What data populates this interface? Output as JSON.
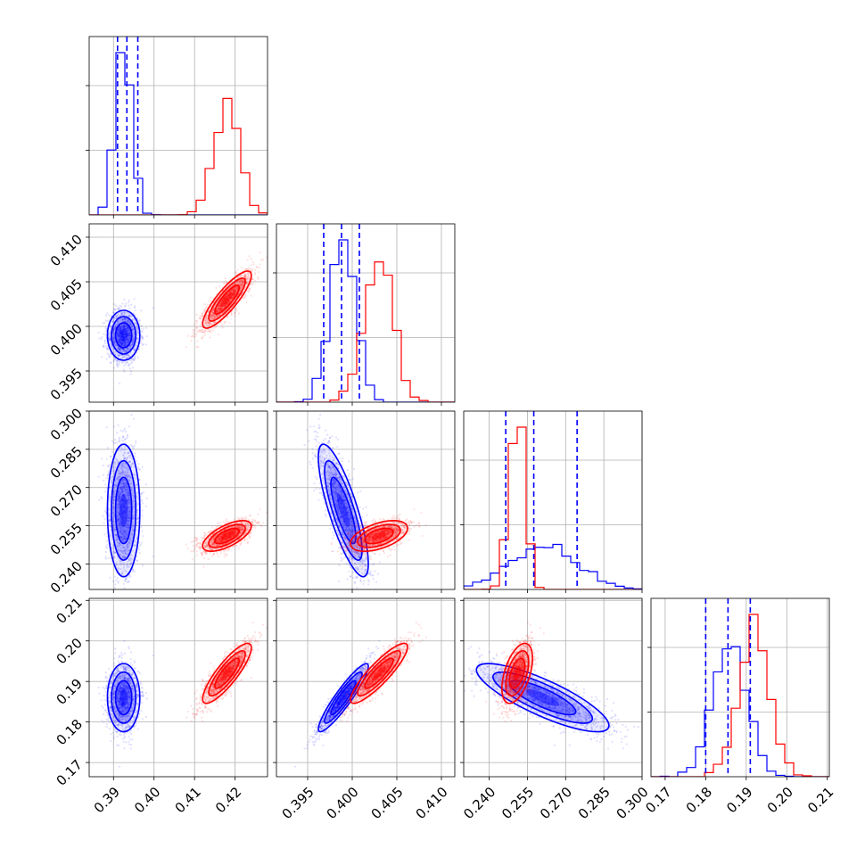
{
  "chart_data": {
    "type": "corner",
    "title": "",
    "parameters": [
      {
        "label": "",
        "range": [
          0.384,
          0.428
        ],
        "ticks": [
          "0.39",
          "0.40",
          "0.41",
          "0.42"
        ]
      },
      {
        "label": "",
        "range": [
          0.3915,
          0.4115
        ],
        "ticks": [
          "0.395",
          "0.400",
          "0.405",
          "0.410"
        ]
      },
      {
        "label": "",
        "range": [
          0.23,
          0.3
        ],
        "ticks": [
          "0.240",
          "0.255",
          "0.270",
          "0.285",
          "0.300"
        ]
      },
      {
        "label": "",
        "range": [
          0.1665,
          0.2105
        ],
        "ticks": [
          "0.17",
          "0.18",
          "0.19",
          "0.20",
          "0.21"
        ]
      }
    ],
    "series": [
      {
        "name": "",
        "color": "#0000ff",
        "mean": [
          0.3925,
          0.399,
          0.261,
          0.186
        ],
        "sigma": [
          0.002,
          0.0014,
          0.013,
          0.0042
        ],
        "corr": [
          [
            1,
            0,
            0,
            0
          ],
          [
            0,
            1,
            -0.8,
            0.92
          ],
          [
            0,
            -0.8,
            1,
            -0.82
          ],
          [
            0,
            0.92,
            -0.82,
            1
          ]
        ],
        "quantiles": [
          [
            0.391,
            0.3933,
            0.396
          ],
          [
            0.3968,
            0.3988,
            0.4008
          ],
          [
            0.2465,
            0.2575,
            0.2745
          ],
          [
            0.18,
            0.1855,
            0.191
          ]
        ]
      },
      {
        "name": "",
        "color": "#ff0000",
        "mean": [
          0.418,
          0.403,
          0.251,
          0.192
        ],
        "sigma": [
          0.003,
          0.0016,
          0.003,
          0.0037
        ],
        "corr": [
          [
            1,
            0.85,
            0.65,
            0.85
          ],
          [
            0.85,
            1,
            0.5,
            0.88
          ],
          [
            0.65,
            0.5,
            1,
            0.5
          ],
          [
            0.85,
            0.88,
            0.5,
            1
          ]
        ],
        "quantiles": []
      }
    ],
    "histogram": {
      "bins": 20
    },
    "contour_levels_sigma": [
      0.5,
      1.0,
      1.5,
      2.0
    ],
    "grid": true,
    "legend": "none"
  }
}
